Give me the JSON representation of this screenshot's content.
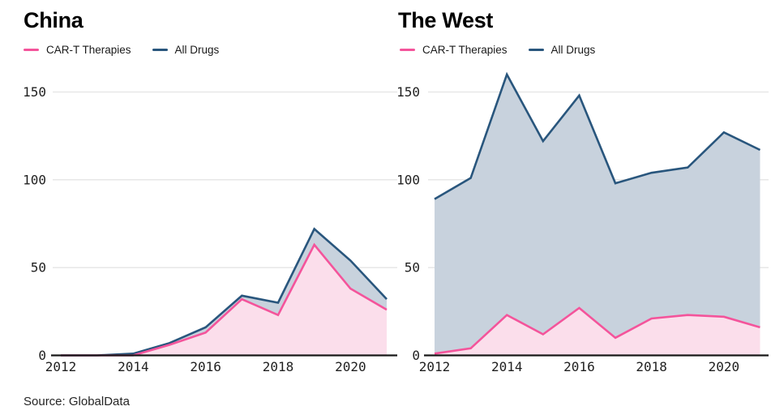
{
  "page": {
    "source": "Source: GlobalData"
  },
  "colors": {
    "cart_line": "#f4549b",
    "cart_fill": "#fbdeeb",
    "all_line": "#29567d",
    "all_fill": "#c8d2dd",
    "grid": "#e4e4e4",
    "axis": "#181818"
  },
  "chart_data": [
    {
      "type": "area",
      "title": "China",
      "x": [
        2012,
        2013,
        2014,
        2015,
        2016,
        2017,
        2018,
        2019,
        2020,
        2021
      ],
      "series": [
        {
          "name": "CAR-T Therapies",
          "values": [
            0,
            0,
            0,
            6,
            13,
            32,
            23,
            63,
            38,
            26
          ]
        },
        {
          "name": "All Drugs",
          "values": [
            0,
            0,
            1,
            7,
            16,
            34,
            30,
            72,
            54,
            32
          ]
        }
      ],
      "ylim": [
        0,
        150
      ],
      "yticks": [
        0,
        50,
        100,
        150
      ],
      "xticks": [
        2012,
        2014,
        2016,
        2018,
        2020
      ],
      "grid": true,
      "legend_position": "top-left"
    },
    {
      "type": "area",
      "title": "The West",
      "x": [
        2012,
        2013,
        2014,
        2015,
        2016,
        2017,
        2018,
        2019,
        2020,
        2021
      ],
      "series": [
        {
          "name": "CAR-T Therapies",
          "values": [
            1,
            4,
            23,
            12,
            27,
            10,
            21,
            23,
            22,
            16
          ]
        },
        {
          "name": "All Drugs",
          "values": [
            89,
            101,
            160,
            122,
            148,
            98,
            104,
            107,
            127,
            117
          ]
        }
      ],
      "ylim": [
        0,
        150
      ],
      "yticks": [
        0,
        50,
        100,
        150
      ],
      "xticks": [
        2012,
        2014,
        2016,
        2018,
        2020
      ],
      "grid": true,
      "legend_position": "top-left"
    }
  ]
}
